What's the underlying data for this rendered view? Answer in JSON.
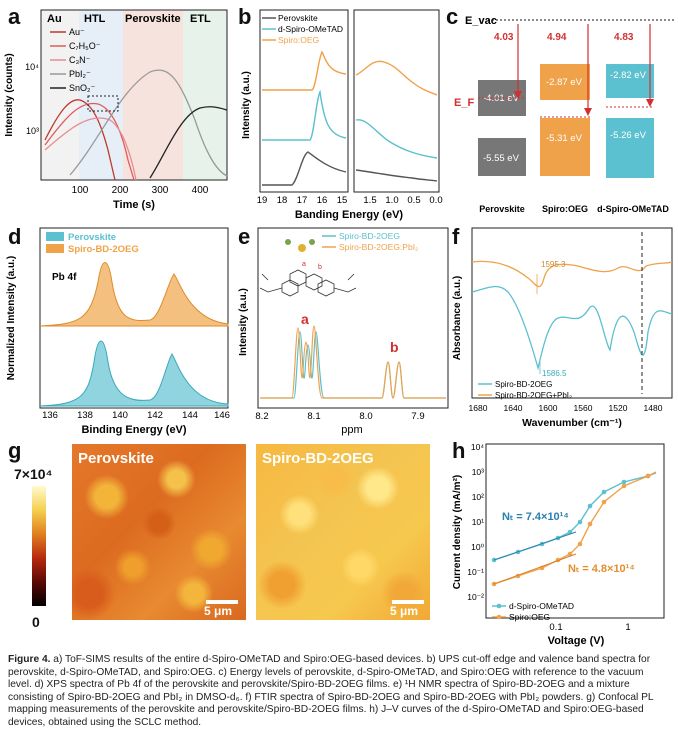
{
  "panels": {
    "a": {
      "label": "a",
      "regions": [
        "Au",
        "HTL",
        "Perovskite",
        "ETL"
      ],
      "legend": [
        "Au⁻",
        "C₇H₅O⁻",
        "C₃N⁻",
        "PbI₂⁻",
        "SnO₂⁻"
      ],
      "xlabel": "Time (s)",
      "ylabel": "Intensity (counts)",
      "xticks": [
        "100",
        "200",
        "300",
        "400"
      ],
      "yticks": [
        "10³",
        "10⁴"
      ]
    },
    "b": {
      "label": "b",
      "legend": [
        "Perovskite",
        "d-Spiro-OMeTAD",
        "Spiro:OEG"
      ],
      "xlabel": "Banding Energy (eV)",
      "ylabel": "Intensity (a.u.)",
      "xticks_left": [
        "19",
        "18",
        "17",
        "16",
        "15"
      ],
      "xticks_right": [
        "1.5",
        "1.0",
        "0.5",
        "0.0"
      ]
    },
    "c": {
      "label": "c",
      "evac": "E_vac",
      "ef": "E_F",
      "materials": [
        "Perovskite",
        "Spiro:OEG",
        "d-Spiro-OMeTAD"
      ],
      "workfunctions": [
        "4.03",
        "4.94",
        "4.83"
      ],
      "cb": [
        "-4.01 eV",
        "-2.87 eV",
        "-2.82 eV"
      ],
      "vb": [
        "-5.55 eV",
        "-5.31 eV",
        "-5.26 eV"
      ]
    },
    "d": {
      "label": "d",
      "legend": [
        "Perovskite",
        "Spiro-BD-2OEG"
      ],
      "annotation": "Pb 4f",
      "xlabel": "Binding Energy (eV)",
      "ylabel": "Normalized Intensity (a.u.)",
      "xticks": [
        "136",
        "138",
        "140",
        "142",
        "144",
        "146"
      ]
    },
    "e": {
      "label": "e",
      "legend": [
        "Spiro-BD-2OEG",
        "Spiro-BD-2OEG:PbI₂"
      ],
      "peak_a": "a",
      "peak_b": "b",
      "xlabel": "ppm",
      "ylabel": "Intensity (a.u.)",
      "xticks": [
        "8.2",
        "8.1",
        "8.0",
        "7.9"
      ]
    },
    "f": {
      "label": "f",
      "annotations": [
        "1595.3",
        "1586.5"
      ],
      "legend": [
        "Spiro-BD-2OEG",
        "Spiro-BD-2OEG+PbI₂"
      ],
      "xlabel": "Wavenumber (cm⁻¹)",
      "ylabel": "Absorbance (a.u.)",
      "xticks": [
        "1680",
        "1640",
        "1600",
        "1560",
        "1520",
        "1480"
      ]
    },
    "g": {
      "label": "g",
      "colorbar_max": "7×10⁴",
      "colorbar_min": "0",
      "map_left": "Perovskite",
      "map_right": "Spiro-BD-2OEG",
      "scale": "5 μm"
    },
    "h": {
      "label": "h",
      "nt_blue": "Nₜ = 7.4×10¹⁴",
      "nt_orange": "Nₜ = 4.8×10¹⁴",
      "legend": [
        "d-Spiro-OMeTAD",
        "Spiro:OEG"
      ],
      "xlabel": "Voltage (V)",
      "ylabel": "Current density (mA/m²)",
      "xticks": [
        "0.1",
        "1"
      ],
      "yticks": [
        "10⁴",
        "10³",
        "10²",
        "10¹",
        "10⁰",
        "10⁻¹",
        "10⁻²"
      ]
    }
  },
  "colors": {
    "orange": "#f0a24a",
    "cyan": "#5bc0cf",
    "gray": "#555555",
    "red": "#d23030",
    "au_bg": "#f2f2f2",
    "htl_bg": "#e6eef7",
    "perov_bg": "#f6e3de",
    "etl_bg": "#e6f2ea"
  },
  "caption": {
    "bold": "Figure 4.",
    "text": " a) ToF-SIMS results of the entire d-Spiro-OMeTAD and Spiro:OEG-based devices. b) UPS cut-off edge and valence band spectra for perovskite, d-Spiro-OMeTAD, and Spiro:OEG. c) Energy levels of perovskite, d-Spiro-OMeTAD, and Spiro:OEG with reference to the vacuum level. d) XPS spectra of Pb 4f of the perovskite and perovskite/Spiro-BD-2OEG films. e) ¹H NMR spectra of Spiro-BD-2OEG and a mixture consisting of Spiro-BD-2OEG and PbI₂ in DMSO-d₆. f) FTIR spectra of Spiro-BD-2OEG and Spiro-BD-2OEG with PbI₂ powders. g) Confocal PL mapping measurements of the perovskite and perovskite/Spiro-BD-2OEG films. h) J–V curves of the d-Spiro-OMeTAD and Spiro:OEG-based devices, obtained using the SCLC method."
  }
}
